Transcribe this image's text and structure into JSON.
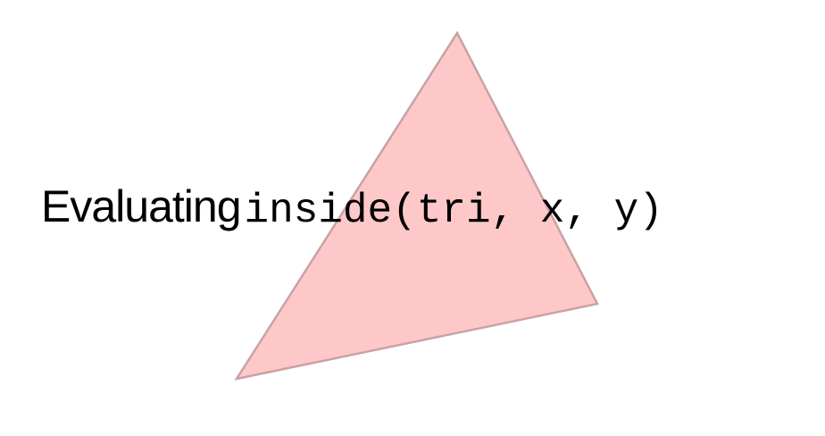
{
  "caption": {
    "prefix": "Evaluating",
    "code": "inside(tri, x, y)"
  },
  "colors": {
    "triangle_fill": "#ffc8c8",
    "triangle_stroke": "#c9a2a4",
    "text": "#000000",
    "background": "#ffffff"
  }
}
